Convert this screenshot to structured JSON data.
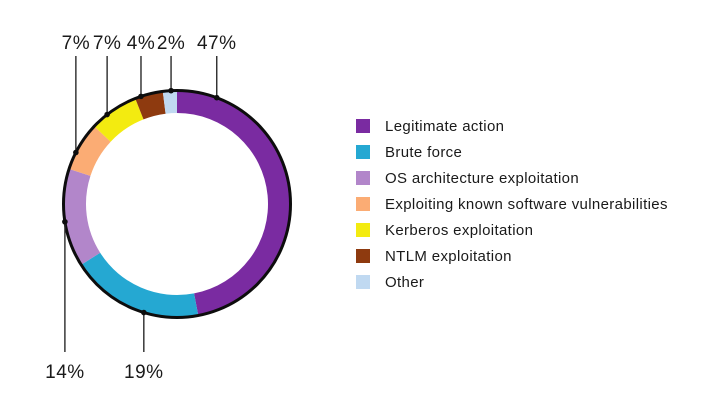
{
  "figure": {
    "background_color": "#ffffff"
  },
  "chart_data": {
    "type": "pie",
    "subtype": "donut-ring",
    "title": "",
    "start_angle": 0,
    "direction": "clockwise",
    "legend_position": "right",
    "value_suffix": "%",
    "outline_color": "#0d0d0d",
    "callout_line_color": "#2a2a2a",
    "text_color": "#1a1a1a",
    "slices": [
      {
        "label": "Legitimate action",
        "value": 47,
        "display": "47%",
        "color": "#7A2BA1",
        "callout_angle": 20.5,
        "callout_side": "top"
      },
      {
        "label": "Brute force",
        "value": 19,
        "display": "19%",
        "color": "#25A8D2",
        "callout_angle": 197,
        "callout_side": "bottom"
      },
      {
        "label": "OS architecture exploitation",
        "value": 14,
        "display": "14%",
        "color": "#B286CA",
        "callout_angle": 261,
        "callout_side": "bottom"
      },
      {
        "label": "Exploiting known software vulnerabilities",
        "value": 7,
        "display": "7%",
        "color": "#FBAC74",
        "callout_angle": 297,
        "callout_side": "top"
      },
      {
        "label": "Kerberos exploitation",
        "value": 7,
        "display": "7%",
        "color": "#F3EB10",
        "callout_angle": 322,
        "callout_side": "top"
      },
      {
        "label": "NTLM exploitation",
        "value": 4,
        "display": "4%",
        "color": "#8E3A0F",
        "callout_angle": 341.5,
        "callout_side": "top"
      },
      {
        "label": "Other",
        "value": 2,
        "display": "2%",
        "color": "#C0D9F1",
        "callout_angle": 357,
        "callout_side": "top"
      }
    ]
  }
}
